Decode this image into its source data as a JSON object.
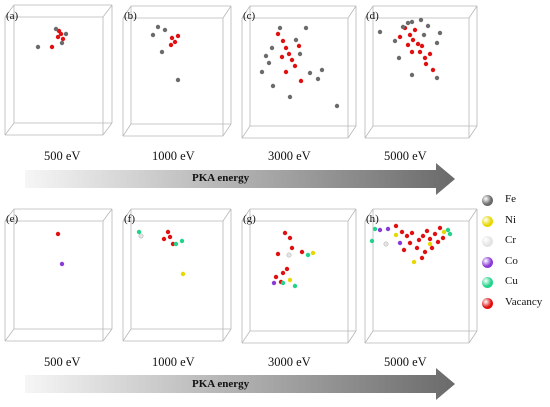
{
  "top_row": {
    "arrow_label": "PKA energy",
    "panels": [
      {
        "label": "(a)",
        "energy": "500 eV"
      },
      {
        "label": "(b)",
        "energy": "1000 eV"
      },
      {
        "label": "(c)",
        "energy": "3000 eV"
      },
      {
        "label": "(d)",
        "energy": "5000 eV"
      }
    ]
  },
  "bottom_row": {
    "arrow_label": "PKA energy",
    "panels": [
      {
        "label": "(e)",
        "energy": "500 eV"
      },
      {
        "label": "(f)",
        "energy": "1000 eV"
      },
      {
        "label": "(g)",
        "energy": "3000 eV"
      },
      {
        "label": "(h)",
        "energy": "5000 eV"
      }
    ]
  },
  "legend": [
    {
      "label": "Fe",
      "color": "#6b6b6b"
    },
    {
      "label": "Ni",
      "color": "#e6d800"
    },
    {
      "label": "Cr",
      "color": "#e4e4e4"
    },
    {
      "label": "Co",
      "color": "#8a3ad8"
    },
    {
      "label": "Cu",
      "color": "#22d38a"
    },
    {
      "label": "Vacancy",
      "color": "#e01010"
    }
  ]
}
